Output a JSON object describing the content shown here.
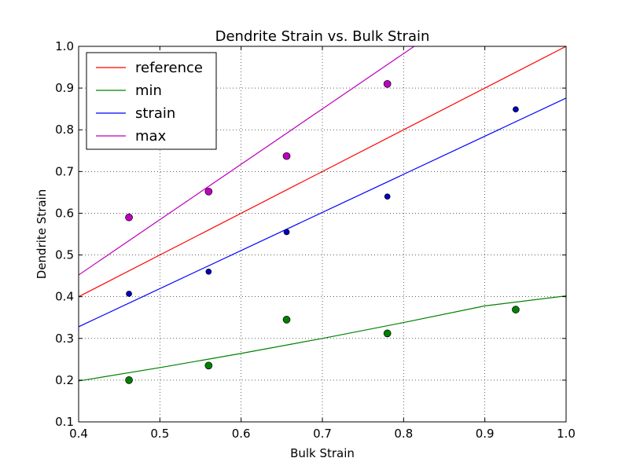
{
  "chart_data": {
    "type": "scatter",
    "title": "Dendrite Strain vs. Bulk Strain",
    "xlabel": "Bulk Strain",
    "ylabel": "Dendrite Strain",
    "xlim": [
      0.4,
      1.0
    ],
    "ylim": [
      0.1,
      1.0
    ],
    "xticks": [
      "0.4",
      "0.5",
      "0.6",
      "0.7",
      "0.8",
      "0.9",
      "1.0"
    ],
    "yticks": [
      "0.1",
      "0.2",
      "0.3",
      "0.4",
      "0.5",
      "0.6",
      "0.7",
      "0.8",
      "0.9",
      "1.0"
    ],
    "grid": true,
    "legend_position": "top-left",
    "lines": [
      {
        "name": "reference",
        "color": "#ff0000",
        "x": [
          0.4,
          1.0
        ],
        "y": [
          0.4,
          1.0
        ]
      },
      {
        "name": "min",
        "color": "#008000",
        "x": [
          0.4,
          0.5,
          0.6,
          0.7,
          0.8,
          0.9,
          1.0
        ],
        "y": [
          0.198,
          0.23,
          0.264,
          0.3,
          0.338,
          0.378,
          0.402
        ]
      },
      {
        "name": "strain",
        "color": "#0000ff",
        "x": [
          0.4,
          1.0
        ],
        "y": [
          0.328,
          0.876
        ]
      },
      {
        "name": "max",
        "color": "#bf00bf",
        "x": [
          0.4,
          0.813
        ],
        "y": [
          0.452,
          1.0
        ]
      }
    ],
    "scatter_series": [
      {
        "name": "strain",
        "color": "#0000bf",
        "size": "small",
        "x": [
          0.462,
          0.56,
          0.656,
          0.78,
          0.938
        ],
        "y": [
          0.407,
          0.46,
          0.555,
          0.64,
          0.849
        ]
      },
      {
        "name": "min",
        "color": "#008000",
        "size": "large",
        "x": [
          0.462,
          0.56,
          0.656,
          0.78,
          0.938
        ],
        "y": [
          0.2,
          0.235,
          0.345,
          0.312,
          0.369
        ]
      },
      {
        "name": "max",
        "color": "#bf00bf",
        "size": "large",
        "x": [
          0.462,
          0.56,
          0.656,
          0.78
        ],
        "y": [
          0.59,
          0.652,
          0.737,
          0.91
        ]
      }
    ]
  }
}
